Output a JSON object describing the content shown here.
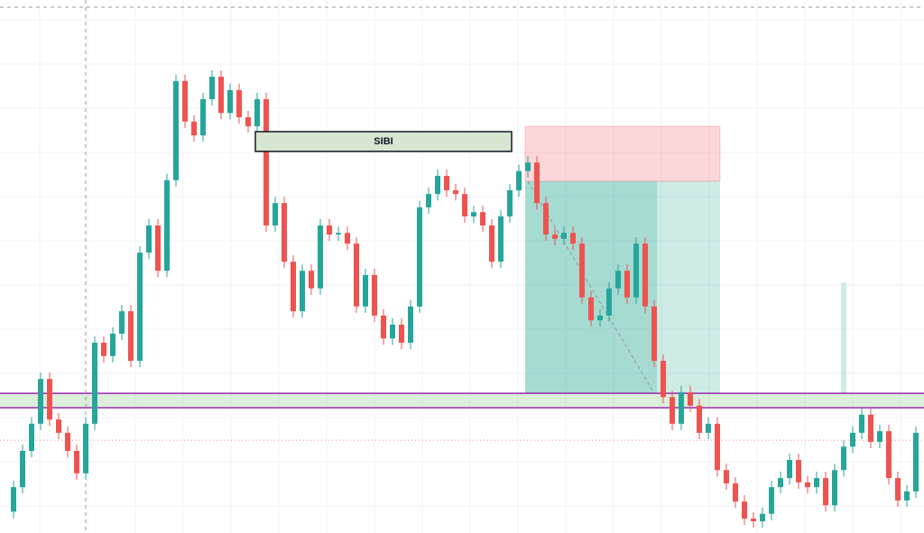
{
  "chart_data": {
    "type": "candlestick",
    "up_color": "#26a69a",
    "down_color": "#ef5350",
    "ylim": [
      0,
      100
    ],
    "grid": true,
    "open": [
      4.0,
      8.6,
      15.4,
      20.5,
      28.9,
      21.3,
      18.8,
      15.4,
      11.2,
      20.5,
      35.7,
      33.2,
      37.4,
      41.6,
      32.3,
      52.6,
      57.7,
      49.2,
      66.2,
      84.8,
      77.2,
      74.6,
      81.4,
      85.6,
      78.8,
      83.1,
      78.0,
      76.3,
      81.4,
      57.7,
      61.9,
      50.9,
      41.6,
      49.2,
      45.9,
      57.7,
      56.0,
      56.3,
      54.3,
      42.5,
      48.4,
      40.8,
      36.5,
      39.1,
      35.7,
      42.5,
      61.1,
      63.6,
      67.0,
      64.3,
      63.6,
      59.4,
      60.2,
      57.7,
      50.9,
      59.4,
      64.3,
      67.9,
      69.5,
      61.9,
      56.0,
      55.2,
      56.3,
      54.3,
      44.2,
      39.9,
      40.8,
      45.9,
      49.2,
      44.2,
      54.3,
      42.5,
      32.3,
      25.5,
      20.5,
      26.4,
      23.9,
      18.8,
      20.5,
      11.8,
      9.3,
      5.9,
      2.7,
      2.2,
      3.6,
      8.6,
      10.3,
      13.7,
      9.5,
      8.6,
      10.3,
      5.2,
      11.8,
      16.2,
      18.8,
      22.2,
      17.1,
      19.1,
      10.3,
      6.1,
      7.8
    ],
    "high": [
      9.8,
      16.6,
      21.7,
      30.1,
      30.1,
      22.5,
      20.0,
      16.6,
      21.7,
      36.9,
      36.9,
      38.6,
      42.8,
      42.8,
      53.8,
      58.9,
      58.9,
      67.4,
      86.0,
      86.0,
      78.4,
      82.6,
      86.8,
      86.8,
      84.3,
      84.3,
      79.2,
      82.6,
      82.6,
      63.1,
      63.1,
      52.1,
      50.4,
      50.4,
      58.9,
      58.9,
      57.5,
      57.5,
      55.5,
      49.6,
      49.6,
      42.0,
      40.3,
      40.3,
      43.7,
      62.3,
      64.8,
      68.2,
      68.2,
      65.5,
      64.8,
      61.4,
      61.4,
      58.9,
      60.6,
      65.5,
      69.1,
      70.7,
      70.7,
      63.1,
      57.2,
      57.5,
      57.5,
      55.5,
      45.4,
      42.0,
      47.1,
      50.4,
      50.4,
      55.5,
      55.5,
      43.7,
      33.5,
      26.7,
      27.6,
      27.6,
      25.1,
      21.7,
      21.7,
      13.0,
      10.5,
      7.1,
      3.9,
      4.8,
      9.8,
      11.5,
      14.9,
      14.9,
      10.7,
      11.5,
      11.5,
      13.0,
      17.4,
      20.0,
      23.4,
      23.4,
      20.3,
      20.3,
      11.5,
      9.0,
      20.0
    ],
    "low": [
      2.8,
      7.4,
      14.2,
      19.3,
      20.1,
      17.6,
      14.2,
      10.0,
      10.0,
      19.3,
      32.0,
      32.0,
      36.2,
      31.1,
      31.1,
      51.4,
      48.0,
      48.0,
      65.0,
      76.0,
      73.4,
      73.4,
      80.2,
      77.6,
      77.6,
      76.8,
      75.1,
      75.1,
      56.5,
      56.5,
      49.7,
      40.4,
      40.4,
      44.7,
      44.7,
      54.8,
      54.8,
      53.1,
      41.3,
      41.3,
      39.6,
      35.3,
      35.3,
      34.5,
      34.5,
      41.3,
      59.9,
      62.4,
      63.1,
      62.4,
      58.2,
      58.2,
      56.5,
      49.7,
      49.7,
      58.2,
      63.1,
      66.7,
      60.7,
      54.8,
      54.0,
      54.0,
      53.1,
      43.0,
      38.7,
      38.7,
      39.6,
      44.7,
      43.0,
      43.0,
      41.3,
      31.1,
      24.3,
      19.3,
      19.3,
      22.7,
      17.6,
      17.6,
      10.6,
      8.1,
      4.7,
      1.5,
      1.0,
      1.0,
      2.4,
      7.4,
      9.1,
      8.3,
      7.4,
      7.4,
      4.0,
      4.0,
      10.6,
      15.0,
      17.6,
      15.9,
      15.9,
      9.1,
      4.9,
      4.9,
      6.6
    ],
    "close": [
      8.6,
      15.4,
      20.5,
      28.9,
      21.3,
      18.8,
      15.4,
      11.2,
      20.5,
      35.7,
      33.2,
      37.4,
      41.6,
      32.3,
      52.6,
      57.7,
      49.2,
      66.2,
      84.8,
      77.2,
      74.6,
      81.4,
      85.6,
      78.8,
      83.1,
      78.0,
      76.3,
      81.4,
      57.7,
      61.9,
      50.9,
      41.6,
      49.2,
      45.9,
      57.7,
      56.0,
      56.3,
      54.3,
      42.5,
      48.4,
      40.8,
      36.5,
      39.1,
      35.7,
      42.5,
      61.1,
      63.6,
      67.0,
      64.3,
      63.6,
      59.4,
      60.2,
      57.7,
      50.9,
      59.4,
      64.3,
      67.9,
      69.5,
      61.9,
      56.0,
      55.2,
      56.3,
      54.3,
      44.2,
      39.9,
      40.8,
      45.9,
      49.2,
      44.2,
      54.3,
      42.5,
      32.3,
      25.5,
      20.5,
      26.4,
      23.9,
      18.8,
      20.5,
      11.8,
      9.3,
      5.9,
      2.7,
      2.2,
      3.6,
      8.6,
      10.3,
      13.7,
      9.5,
      8.6,
      10.3,
      5.2,
      11.8,
      16.2,
      18.8,
      22.2,
      17.1,
      19.1,
      10.3,
      6.1,
      7.8,
      18.8
    ],
    "sibi": {
      "label": "SIBI",
      "from": 27,
      "to": 55,
      "top": 75.3,
      "bottom": 71.6,
      "color": "#d6e6d2"
    },
    "zone": {
      "top": 26.2,
      "bottom": 23.5,
      "color": "#9c27b0"
    },
    "position": {
      "from": 57,
      "to": 78,
      "filled_to": 71,
      "stop": 76.3,
      "entry": 66.0,
      "target": 26.2
    },
    "marker": {
      "index": 92,
      "top": 47.0,
      "bottom": 26.2
    },
    "price_line": 17.4,
    "crosshair_index": 8
  }
}
